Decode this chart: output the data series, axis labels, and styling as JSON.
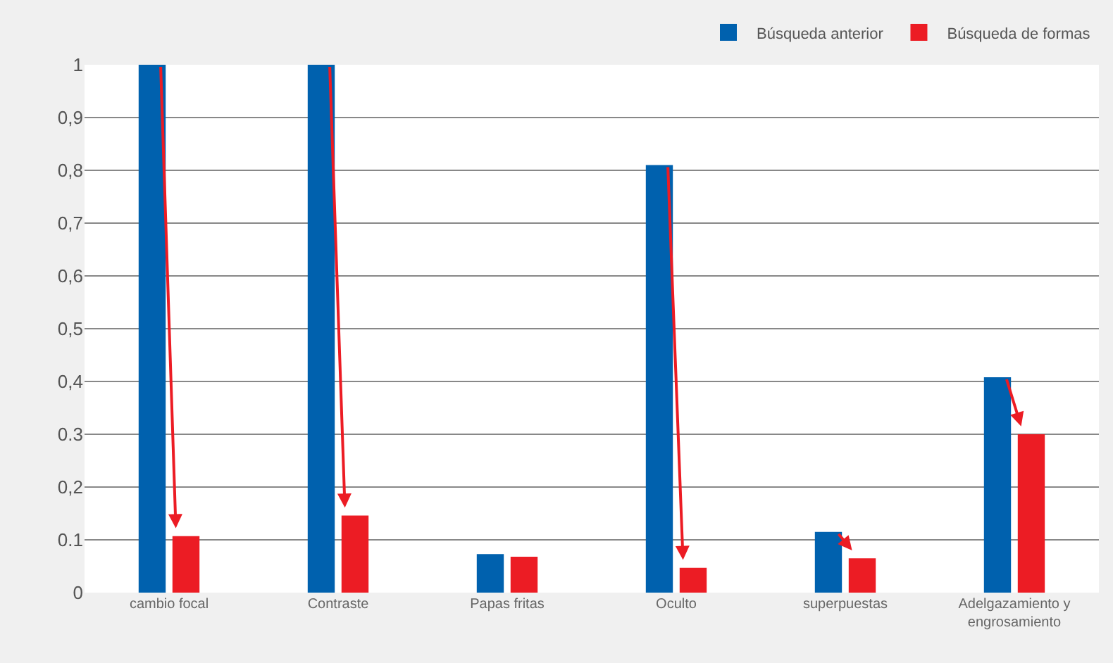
{
  "chart_data": {
    "type": "bar",
    "categories": [
      "cambio focal",
      "Contraste",
      "Papas fritas",
      "Oculto",
      "superpuestas",
      "Adelgazamiento y engrosamiento"
    ],
    "series": [
      {
        "name": "Búsqueda anterior",
        "color": "#0061ae",
        "values": [
          1,
          1,
          0.073,
          0.81,
          0.115,
          0.408
        ]
      },
      {
        "name": "Búsqueda de formas",
        "color": "#ec1c24",
        "values": [
          0.107,
          0.146,
          0.068,
          0.047,
          0.065,
          0.3
        ]
      }
    ],
    "ylim": [
      0,
      1
    ],
    "yticks": [
      0,
      {
        "value": 0.1,
        "label": "0.1"
      },
      {
        "value": 0.2,
        "label": "0,2"
      },
      {
        "value": 0.3,
        "label": "0.3"
      },
      {
        "value": 0.4,
        "label": "0,4"
      },
      {
        "value": 0.5,
        "label": "0,5"
      },
      {
        "value": 0.6,
        "label": "0,6"
      },
      {
        "value": 0.7,
        "label": "0,7"
      },
      {
        "value": 0.8,
        "label": "0,8"
      },
      {
        "value": 0.9,
        "label": "0,9"
      },
      1
    ],
    "grid": "y",
    "legend": "top right"
  }
}
